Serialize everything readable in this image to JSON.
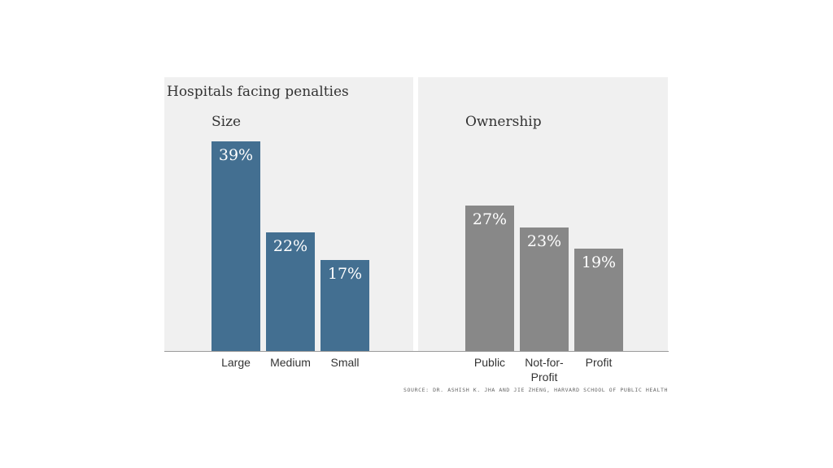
{
  "title": "Hospitals facing penalties",
  "source": "SOURCE: DR. ASHISH K. JHA AND JIE ZHENG, HARVARD SCHOOL OF PUBLIC HEALTH",
  "colors": {
    "size": "#436f91",
    "ownership": "#888888",
    "panel": "#f0f0f0"
  },
  "chart_data": [
    {
      "type": "bar",
      "title": "Size",
      "categories": [
        "Large",
        "Medium",
        "Small"
      ],
      "values": [
        39,
        22,
        17
      ],
      "value_labels": [
        "39%",
        "22%",
        "17%"
      ],
      "ylim": [
        0,
        39
      ]
    },
    {
      "type": "bar",
      "title": "Ownership",
      "categories": [
        "Public",
        "Not-for-Profit",
        "Profit"
      ],
      "values": [
        27,
        23,
        19
      ],
      "value_labels": [
        "27%",
        "23%",
        "19%"
      ],
      "ylim": [
        0,
        39
      ]
    }
  ]
}
